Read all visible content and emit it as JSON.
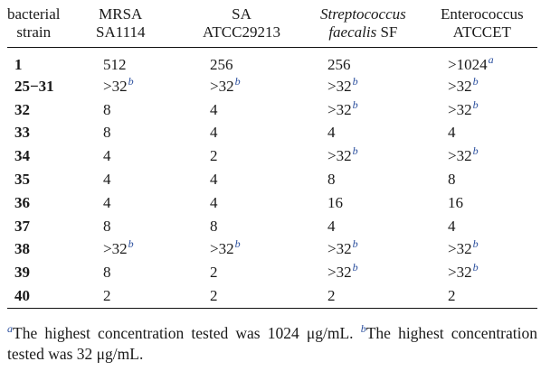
{
  "table": {
    "headers": [
      {
        "lines": [
          "bacterial",
          "strain"
        ],
        "italic": false
      },
      {
        "lines": [
          "MRSA",
          "SA1114"
        ],
        "italic": false
      },
      {
        "lines": [
          "SA",
          "ATCC29213"
        ],
        "italic": false
      },
      {
        "lines": [
          "Streptococcus",
          "faecalis SF"
        ],
        "italic": true
      },
      {
        "lines": [
          "Enterococcus",
          "ATCCET"
        ],
        "italic": false
      }
    ],
    "rows": [
      {
        "strain": "1",
        "cells": [
          {
            "v": "512",
            "n": ""
          },
          {
            "v": "256",
            "n": ""
          },
          {
            "v": "256",
            "n": ""
          },
          {
            "v": ">1024",
            "n": "a"
          }
        ]
      },
      {
        "strain": "25−31",
        "cells": [
          {
            "v": ">32",
            "n": "b"
          },
          {
            "v": ">32",
            "n": "b"
          },
          {
            "v": ">32",
            "n": "b"
          },
          {
            "v": ">32",
            "n": "b"
          }
        ]
      },
      {
        "strain": "32",
        "cells": [
          {
            "v": "8",
            "n": ""
          },
          {
            "v": "4",
            "n": ""
          },
          {
            "v": ">32",
            "n": "b"
          },
          {
            "v": ">32",
            "n": "b"
          }
        ]
      },
      {
        "strain": "33",
        "cells": [
          {
            "v": "8",
            "n": ""
          },
          {
            "v": "4",
            "n": ""
          },
          {
            "v": "4",
            "n": ""
          },
          {
            "v": "4",
            "n": ""
          }
        ]
      },
      {
        "strain": "34",
        "cells": [
          {
            "v": "4",
            "n": ""
          },
          {
            "v": "2",
            "n": ""
          },
          {
            "v": ">32",
            "n": "b"
          },
          {
            "v": ">32",
            "n": "b"
          }
        ]
      },
      {
        "strain": "35",
        "cells": [
          {
            "v": "4",
            "n": ""
          },
          {
            "v": "4",
            "n": ""
          },
          {
            "v": "8",
            "n": ""
          },
          {
            "v": "8",
            "n": ""
          }
        ]
      },
      {
        "strain": "36",
        "cells": [
          {
            "v": "4",
            "n": ""
          },
          {
            "v": "4",
            "n": ""
          },
          {
            "v": "16",
            "n": ""
          },
          {
            "v": "16",
            "n": ""
          }
        ]
      },
      {
        "strain": "37",
        "cells": [
          {
            "v": "8",
            "n": ""
          },
          {
            "v": "8",
            "n": ""
          },
          {
            "v": "4",
            "n": ""
          },
          {
            "v": "4",
            "n": ""
          }
        ]
      },
      {
        "strain": "38",
        "cells": [
          {
            "v": ">32",
            "n": "b"
          },
          {
            "v": ">32",
            "n": "b"
          },
          {
            "v": ">32",
            "n": "b"
          },
          {
            "v": ">32",
            "n": "b"
          }
        ]
      },
      {
        "strain": "39",
        "cells": [
          {
            "v": "8",
            "n": ""
          },
          {
            "v": "2",
            "n": ""
          },
          {
            "v": ">32",
            "n": "b"
          },
          {
            "v": ">32",
            "n": "b"
          }
        ]
      },
      {
        "strain": "40",
        "cells": [
          {
            "v": "2",
            "n": ""
          },
          {
            "v": "2",
            "n": ""
          },
          {
            "v": "2",
            "n": ""
          },
          {
            "v": "2",
            "n": ""
          }
        ]
      }
    ]
  },
  "footnotes": [
    {
      "mark": "a",
      "text": "The highest concentration tested was 1024 μg/mL."
    },
    {
      "mark": "b",
      "text": "The highest concentration tested was 32 μg/mL."
    }
  ],
  "colors": {
    "footnote_mark": "#2b4f9e",
    "text": "#1a1a1a"
  }
}
